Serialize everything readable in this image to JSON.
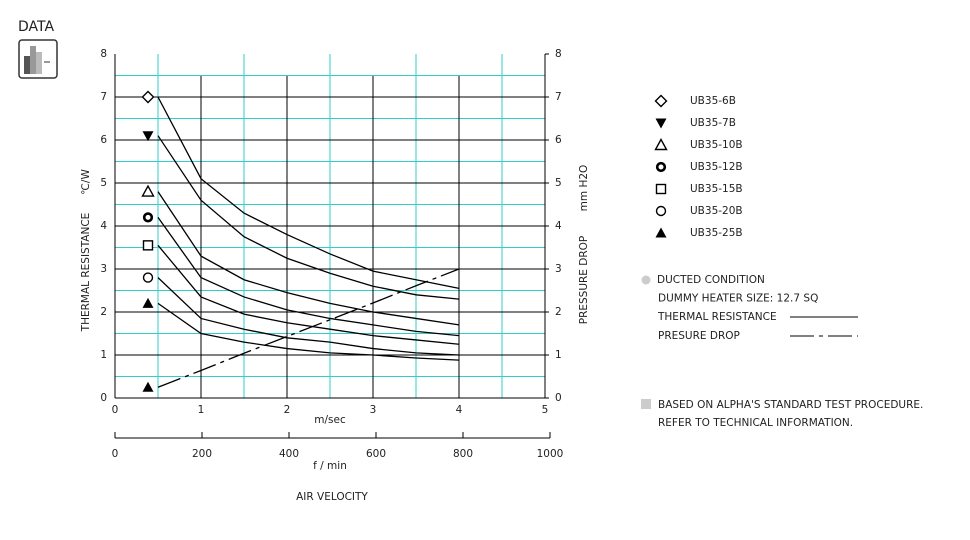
{
  "title": "DATA",
  "chart_data": {
    "type": "line",
    "x_label": "m/sec",
    "x2_label": "f / min",
    "x_title": "AIR VELOCITY",
    "y_label": "THERMAL RESISTANCE",
    "y_unit": "℃/W",
    "y2_label": "PRESSURE DROP",
    "y2_unit": "mm H2O",
    "x": [
      0.5,
      1,
      1.5,
      2,
      2.5,
      3,
      3.5,
      4
    ],
    "xlim": [
      0,
      5
    ],
    "xticks": [
      0,
      1,
      2,
      3,
      4,
      5
    ],
    "xminorticks": [
      0.5,
      1.5,
      2.5,
      3.5,
      4.5
    ],
    "x2lim": [
      0,
      1000
    ],
    "x2ticks": [
      0,
      200,
      400,
      600,
      800,
      1000
    ],
    "ylim": [
      0,
      8
    ],
    "yticks": [
      0,
      1,
      2,
      3,
      4,
      5,
      6,
      7,
      8
    ],
    "yminorticks": [
      0.5,
      1.5,
      2.5,
      3.5,
      4.5,
      5.5,
      6.5,
      7.5
    ],
    "y2lim": [
      0,
      8
    ],
    "y2ticks": [
      0,
      1,
      2,
      3,
      4,
      5,
      6,
      7,
      8
    ],
    "grid": true,
    "grid_color": "#000000",
    "minor_grid_color": "#33cccc",
    "series": [
      {
        "name": "UB35-6B",
        "marker": "diamond",
        "color": "#000000",
        "values": [
          7.0,
          5.1,
          4.3,
          3.8,
          3.35,
          2.95,
          2.75,
          2.55
        ]
      },
      {
        "name": "UB35-7B",
        "marker": "triangle-down",
        "color": "#000000",
        "values": [
          6.1,
          4.6,
          3.75,
          3.25,
          2.9,
          2.6,
          2.4,
          2.3
        ]
      },
      {
        "name": "UB35-10B",
        "marker": "triangle",
        "color": "#000000",
        "values": [
          4.8,
          3.3,
          2.75,
          2.45,
          2.2,
          2.0,
          1.85,
          1.7
        ]
      },
      {
        "name": "UB35-12B",
        "marker": "ring",
        "color": "#000000",
        "values": [
          4.2,
          2.8,
          2.35,
          2.05,
          1.85,
          1.7,
          1.55,
          1.45
        ]
      },
      {
        "name": "UB35-15B",
        "marker": "square",
        "color": "#000000",
        "values": [
          3.55,
          2.35,
          1.95,
          1.75,
          1.6,
          1.45,
          1.35,
          1.25
        ]
      },
      {
        "name": "UB35-20B",
        "marker": "circle",
        "color": "#000000",
        "values": [
          2.8,
          1.85,
          1.6,
          1.4,
          1.3,
          1.15,
          1.05,
          1.0
        ]
      },
      {
        "name": "UB35-25B",
        "marker": "triangle-filled",
        "color": "#000000",
        "values": [
          2.2,
          1.5,
          1.3,
          1.15,
          1.05,
          1.0,
          0.93,
          0.88
        ]
      },
      {
        "name": "PRESURE DROP",
        "axis": "y2",
        "dash": true,
        "marker": "triangle-filled",
        "color": "#000000",
        "values": [
          0.25,
          0.64,
          1.04,
          1.43,
          1.82,
          2.21,
          2.61,
          3.0
        ]
      }
    ],
    "notes": [
      "DUCTED CONDITION",
      "DUMMY HEATER SIZE: 12.7 SQ"
    ],
    "line_key": "THERMAL RESISTANCE",
    "footnote": [
      "BASED ON ALPHA'S STANDARD TEST PROCEDURE.",
      "REFER TO TECHNICAL INFORMATION."
    ]
  }
}
